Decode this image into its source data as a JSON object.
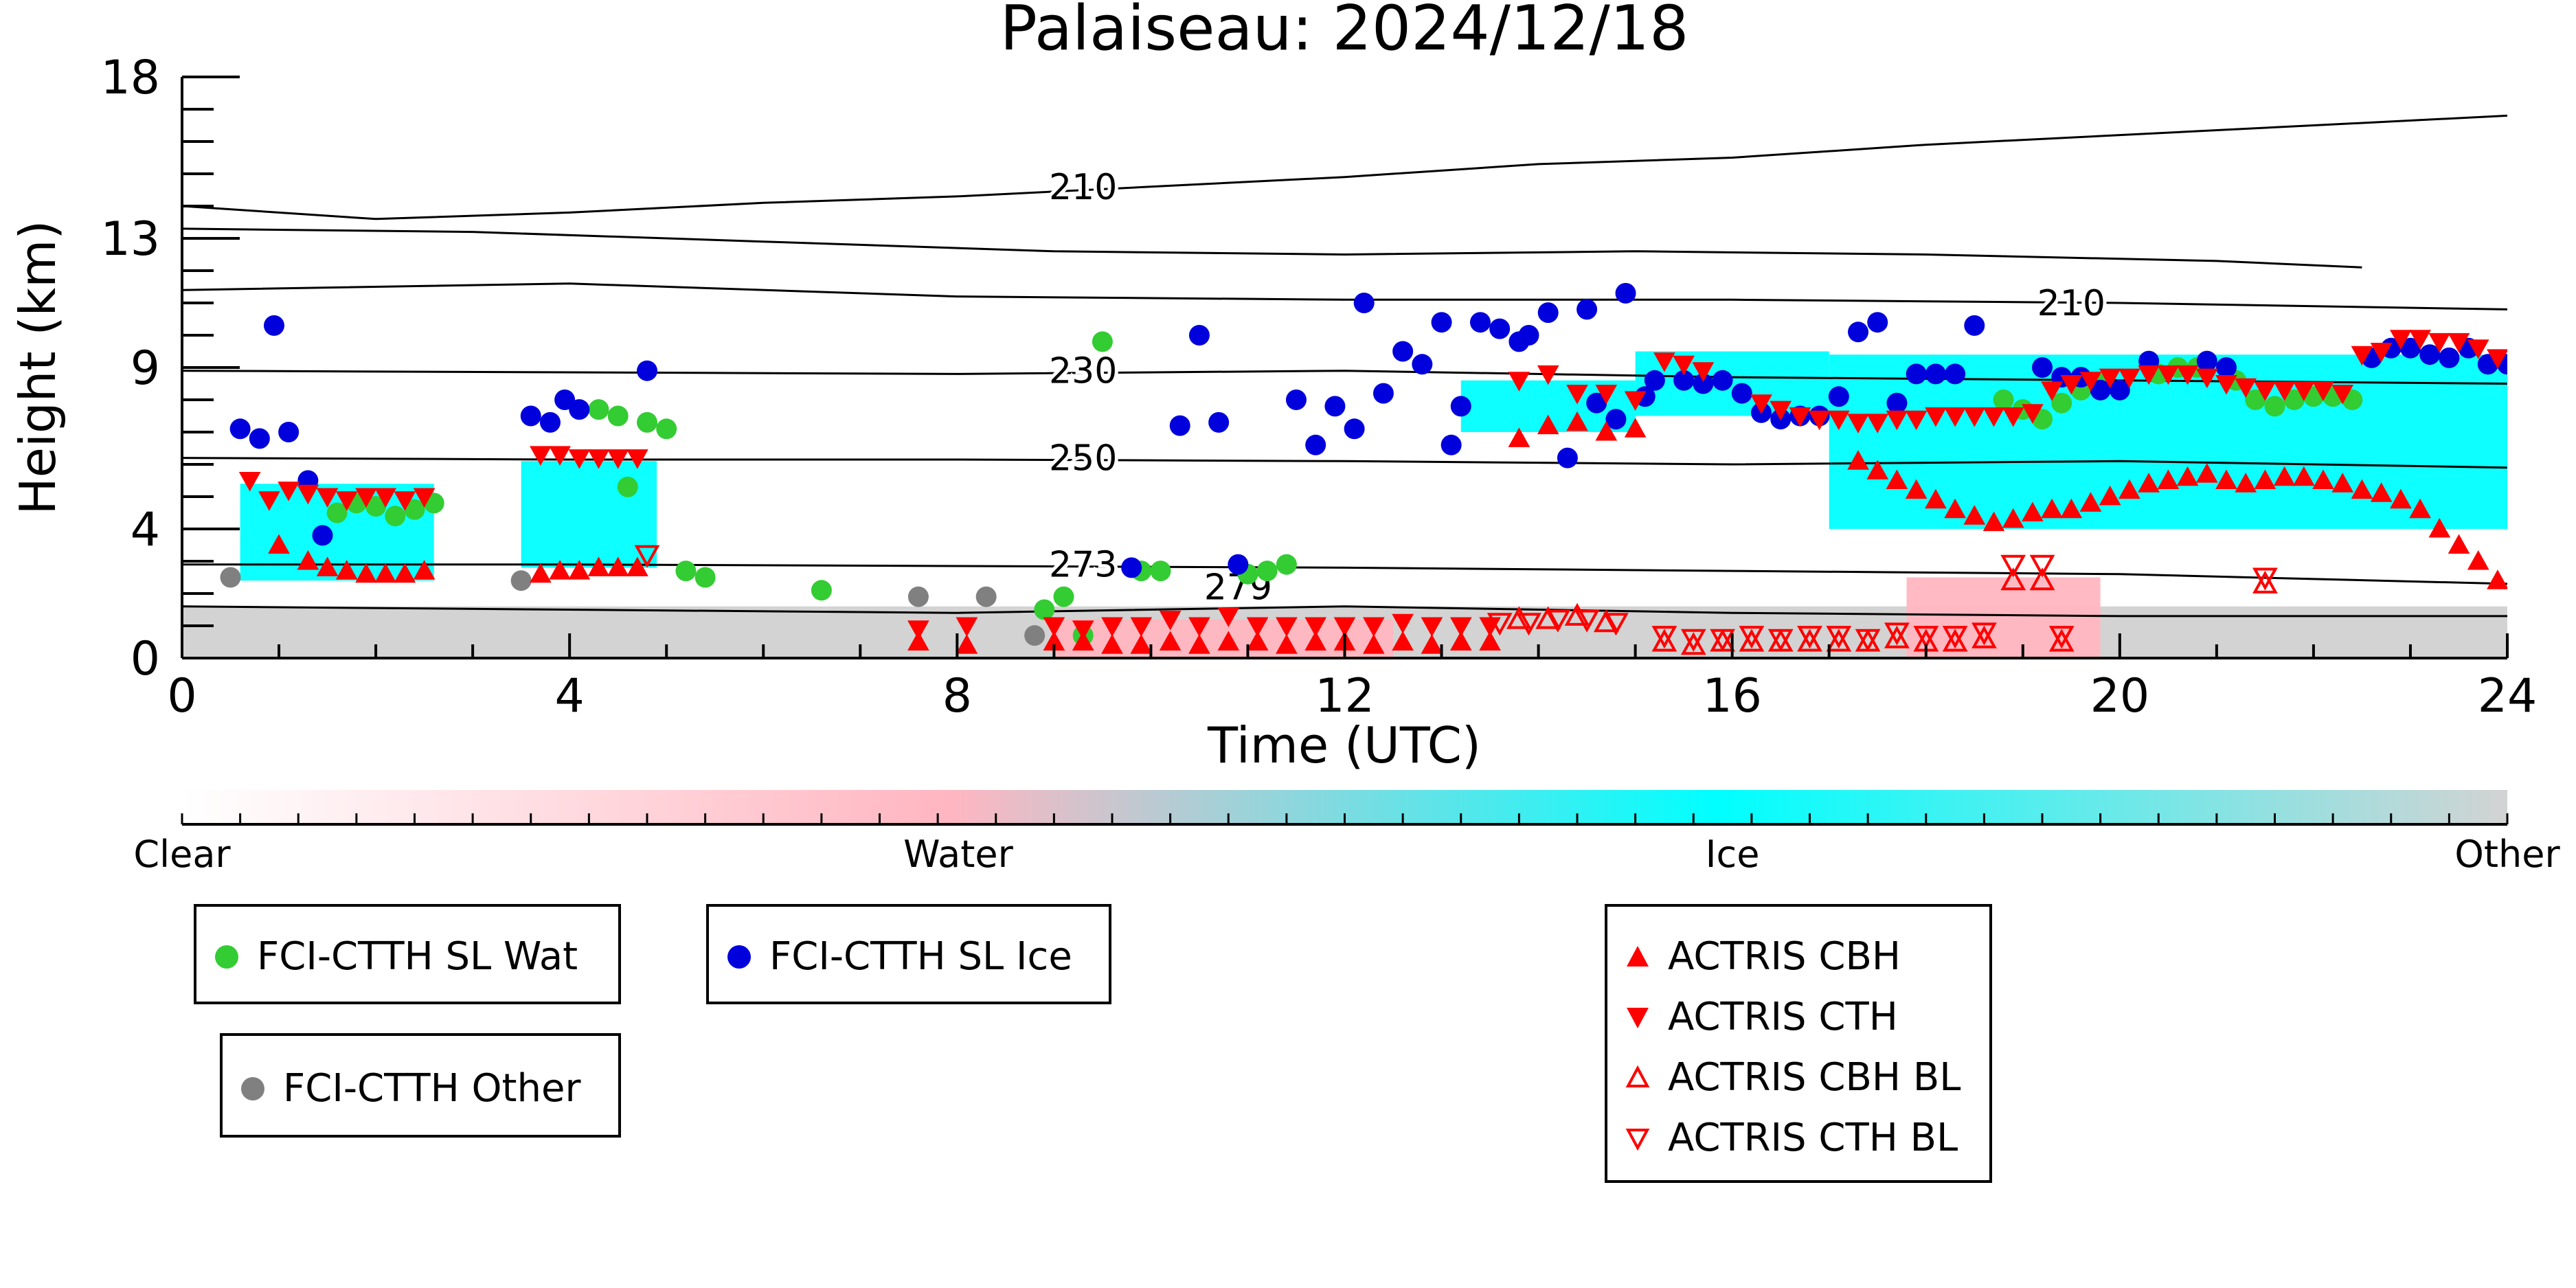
{
  "chart_data": {
    "type": "scatter",
    "title": "Palaiseau: 2024/12/18",
    "xlabel": "Time (UTC)",
    "ylabel": "Height (km)",
    "xlim": [
      0,
      24
    ],
    "ylim": [
      0,
      18
    ],
    "xticks": [
      0,
      4,
      8,
      12,
      16,
      20,
      24
    ],
    "yticks": [
      0,
      4,
      9,
      13,
      18
    ],
    "background_classification": {
      "colorbar_labels": [
        "Clear",
        "Water",
        "Ice",
        "Other"
      ],
      "colors": {
        "clear": "#ffffff",
        "water": "#ffb6c1",
        "ice": "#00ffff",
        "other": "#d3d3d3"
      },
      "regions": [
        {
          "class": "other",
          "x": [
            0,
            24
          ],
          "y": [
            0,
            1.6
          ]
        },
        {
          "class": "ice",
          "x": [
            0.6,
            2.6
          ],
          "y": [
            2.4,
            5.4
          ]
        },
        {
          "class": "ice",
          "x": [
            3.5,
            4.9
          ],
          "y": [
            2.8,
            6.1
          ]
        },
        {
          "class": "ice",
          "x": [
            13.2,
            15.0
          ],
          "y": [
            7.0,
            8.6
          ]
        },
        {
          "class": "ice",
          "x": [
            15.0,
            17.0
          ],
          "y": [
            7.5,
            9.5
          ]
        },
        {
          "class": "ice",
          "x": [
            17.0,
            24.0
          ],
          "y": [
            4.0,
            9.4
          ]
        },
        {
          "class": "water",
          "x": [
            9.0,
            12.5
          ],
          "y": [
            0.0,
            1.2
          ]
        },
        {
          "class": "water",
          "x": [
            17.8,
            19.8
          ],
          "y": [
            0.0,
            2.5
          ]
        }
      ]
    },
    "temperature_contours": [
      {
        "label": "210",
        "points": [
          [
            0,
            14.0
          ],
          [
            2,
            13.6
          ],
          [
            4,
            13.8
          ],
          [
            6,
            14.1
          ],
          [
            8,
            14.3
          ],
          [
            10,
            14.6
          ],
          [
            12,
            14.9
          ],
          [
            14,
            15.3
          ],
          [
            16,
            15.5
          ],
          [
            18,
            15.9
          ],
          [
            20,
            16.2
          ],
          [
            22,
            16.5
          ],
          [
            24,
            16.8
          ]
        ]
      },
      {
        "label": "",
        "points": [
          [
            0,
            13.3
          ],
          [
            3,
            13.2
          ],
          [
            6,
            12.9
          ],
          [
            9,
            12.6
          ],
          [
            12,
            12.5
          ],
          [
            15,
            12.6
          ],
          [
            18,
            12.5
          ],
          [
            21,
            12.3
          ],
          [
            22.5,
            12.1
          ]
        ]
      },
      {
        "label": "210",
        "points": [
          [
            0,
            11.4
          ],
          [
            4,
            11.6
          ],
          [
            8,
            11.2
          ],
          [
            12,
            11.1
          ],
          [
            16,
            11.1
          ],
          [
            20,
            11.0
          ],
          [
            24,
            10.8
          ]
        ]
      },
      {
        "label": "230",
        "points": [
          [
            0,
            8.9
          ],
          [
            4,
            8.85
          ],
          [
            8,
            8.8
          ],
          [
            12,
            8.9
          ],
          [
            16,
            8.7
          ],
          [
            20,
            8.6
          ],
          [
            24,
            8.5
          ]
        ]
      },
      {
        "label": "250",
        "points": [
          [
            0,
            6.2
          ],
          [
            4,
            6.15
          ],
          [
            8,
            6.15
          ],
          [
            12,
            6.1
          ],
          [
            16,
            6.0
          ],
          [
            20,
            6.1
          ],
          [
            24,
            5.9
          ]
        ]
      },
      {
        "label": "273",
        "points": [
          [
            0,
            2.9
          ],
          [
            4,
            2.9
          ],
          [
            8,
            2.85
          ],
          [
            12,
            2.8
          ],
          [
            16,
            2.7
          ],
          [
            20,
            2.6
          ],
          [
            24,
            2.3
          ]
        ]
      },
      {
        "label": "279",
        "points": [
          [
            0,
            1.6
          ],
          [
            4,
            1.5
          ],
          [
            8,
            1.4
          ],
          [
            12,
            1.6
          ],
          [
            16,
            1.4
          ],
          [
            20,
            1.3
          ],
          [
            24,
            1.3
          ]
        ]
      }
    ],
    "contour_label_positions": [
      [
        9.3,
        14.6
      ],
      [
        19.5,
        11.0
      ],
      [
        9.3,
        8.9
      ],
      [
        9.3,
        6.2
      ],
      [
        9.3,
        2.9
      ],
      [
        10.9,
        2.2
      ]
    ],
    "series": [
      {
        "name": "FCI-CTTH SL Wat",
        "marker": "circle",
        "color": "#33cc33",
        "x": [
          1.6,
          1.8,
          2.0,
          2.2,
          2.4,
          2.6,
          4.3,
          4.5,
          4.6,
          4.8,
          5.0,
          5.2,
          5.4,
          6.6,
          8.9,
          9.1,
          9.3,
          9.5,
          9.9,
          10.1,
          11.0,
          11.2,
          11.4,
          18.8,
          19.0,
          19.2,
          19.4,
          19.6,
          19.8,
          20.4,
          20.6,
          20.8,
          21.2,
          21.4,
          21.6,
          21.8,
          22.0,
          22.2,
          22.4
        ],
        "y": [
          4.5,
          4.8,
          4.7,
          4.4,
          4.6,
          4.8,
          7.7,
          7.5,
          5.3,
          7.3,
          7.1,
          2.7,
          2.5,
          2.1,
          1.5,
          1.9,
          0.7,
          9.8,
          2.7,
          2.7,
          2.6,
          2.7,
          2.9,
          8.0,
          7.7,
          7.4,
          7.9,
          8.3,
          8.5,
          8.8,
          9.0,
          9.0,
          8.6,
          8.0,
          7.8,
          8.0,
          8.1,
          8.1,
          8.0
        ]
      },
      {
        "name": "FCI-CTTH SL Ice",
        "marker": "circle",
        "color": "#0000dd",
        "x": [
          0.6,
          0.8,
          0.95,
          1.1,
          1.3,
          1.45,
          3.6,
          3.8,
          3.95,
          4.1,
          4.8,
          9.8,
          10.3,
          10.5,
          10.7,
          10.9,
          11.5,
          11.7,
          11.9,
          12.1,
          12.2,
          12.4,
          12.6,
          12.8,
          13.0,
          13.1,
          13.2,
          13.4,
          13.6,
          13.8,
          13.9,
          14.1,
          14.3,
          14.5,
          14.6,
          14.8,
          14.9,
          15.1,
          15.2,
          15.5,
          15.7,
          15.9,
          16.1,
          16.3,
          16.5,
          16.7,
          16.9,
          17.1,
          17.3,
          17.5,
          17.7,
          17.9,
          18.1,
          18.3,
          18.5,
          19.2,
          19.4,
          19.6,
          19.8,
          20.0,
          20.3,
          20.9,
          21.1,
          22.6,
          22.8,
          23.0,
          23.2,
          23.4,
          23.6,
          23.8,
          24.0
        ],
        "y": [
          7.1,
          6.8,
          10.3,
          7.0,
          5.5,
          3.8,
          7.5,
          7.3,
          8.0,
          7.7,
          8.9,
          2.8,
          7.2,
          10.0,
          7.3,
          2.9,
          8.0,
          6.6,
          7.8,
          7.1,
          11.0,
          8.2,
          9.5,
          9.1,
          10.4,
          6.6,
          7.8,
          10.4,
          10.2,
          9.8,
          10.0,
          10.7,
          6.2,
          10.8,
          7.9,
          7.4,
          11.3,
          8.1,
          8.6,
          8.6,
          8.5,
          8.6,
          8.2,
          7.6,
          7.4,
          7.5,
          7.5,
          8.1,
          10.1,
          10.4,
          7.9,
          8.8,
          8.8,
          8.8,
          10.3,
          9.0,
          8.7,
          8.7,
          8.3,
          8.3,
          9.2,
          9.2,
          9.0,
          9.3,
          9.6,
          9.6,
          9.4,
          9.3,
          9.6,
          9.1,
          9.1
        ]
      },
      {
        "name": "FCI-CTTH Other",
        "marker": "circle",
        "color": "#808080",
        "x": [
          0.5,
          3.5,
          7.6,
          8.3,
          8.8
        ],
        "y": [
          2.5,
          2.4,
          1.9,
          1.9,
          0.7
        ]
      },
      {
        "name": "ACTRIS CBH",
        "marker": "triangle-up",
        "color": "#ff0000",
        "filled": true,
        "x": [
          1.0,
          1.3,
          1.5,
          1.7,
          1.9,
          2.1,
          2.3,
          2.5,
          3.7,
          3.9,
          4.1,
          4.3,
          4.5,
          4.7,
          7.6,
          8.1,
          9.0,
          9.3,
          9.6,
          9.9,
          10.2,
          10.5,
          10.8,
          11.1,
          11.4,
          11.7,
          12.0,
          12.3,
          12.6,
          12.9,
          13.2,
          13.5,
          13.8,
          14.1,
          14.4,
          14.7,
          15.0,
          17.3,
          17.5,
          17.7,
          17.9,
          18.1,
          18.3,
          18.5,
          18.7,
          18.9,
          19.1,
          19.3,
          19.5,
          19.7,
          19.9,
          20.1,
          20.3,
          20.5,
          20.7,
          20.9,
          21.1,
          21.3,
          21.5,
          21.7,
          21.9,
          22.1,
          22.3,
          22.5,
          22.7,
          22.9,
          23.1,
          23.3,
          23.5,
          23.7,
          23.9
        ],
        "y": [
          3.5,
          3.0,
          2.8,
          2.7,
          2.6,
          2.6,
          2.6,
          2.7,
          2.6,
          2.7,
          2.7,
          2.8,
          2.8,
          2.8,
          0.5,
          0.4,
          0.5,
          0.5,
          0.4,
          0.4,
          0.5,
          0.4,
          0.5,
          0.5,
          0.4,
          0.5,
          0.5,
          0.4,
          0.5,
          0.4,
          0.5,
          0.5,
          6.8,
          7.2,
          7.3,
          7.0,
          7.1,
          6.1,
          5.8,
          5.5,
          5.2,
          4.9,
          4.6,
          4.4,
          4.2,
          4.3,
          4.5,
          4.6,
          4.6,
          4.8,
          5.0,
          5.2,
          5.4,
          5.5,
          5.6,
          5.7,
          5.5,
          5.4,
          5.5,
          5.6,
          5.6,
          5.5,
          5.4,
          5.2,
          5.1,
          4.9,
          4.6,
          4.0,
          3.5,
          3.0,
          2.4
        ]
      },
      {
        "name": "ACTRIS CTH",
        "marker": "triangle-down",
        "color": "#ff0000",
        "filled": true,
        "x": [
          0.7,
          0.9,
          1.1,
          1.3,
          1.5,
          1.7,
          1.9,
          2.1,
          2.3,
          2.5,
          3.7,
          3.9,
          4.1,
          4.3,
          4.5,
          4.7,
          7.6,
          8.1,
          9.0,
          9.3,
          9.6,
          9.9,
          10.2,
          10.5,
          10.8,
          11.1,
          11.4,
          11.7,
          12.0,
          12.3,
          12.6,
          12.9,
          13.2,
          13.5,
          13.8,
          14.1,
          14.4,
          14.7,
          15.0,
          15.3,
          15.5,
          15.7,
          16.3,
          16.5,
          16.7,
          16.9,
          17.1,
          17.3,
          17.5,
          17.7,
          17.9,
          18.1,
          18.3,
          18.5,
          18.7,
          18.9,
          19.1,
          19.3,
          19.5,
          19.7,
          19.9,
          20.1,
          20.3,
          20.5,
          20.7,
          20.9,
          21.1,
          21.3,
          21.5,
          21.7,
          21.9,
          22.1,
          22.3,
          22.5,
          22.7,
          22.9,
          23.1,
          23.3,
          23.5,
          23.7,
          23.9
        ],
        "y": [
          5.5,
          4.9,
          5.2,
          5.1,
          5.0,
          4.9,
          5.0,
          5.0,
          4.9,
          5.0,
          6.3,
          6.3,
          6.2,
          6.2,
          6.2,
          6.2,
          0.9,
          1.0,
          1.0,
          0.9,
          1.0,
          1.0,
          1.2,
          1.0,
          1.3,
          1.0,
          1.0,
          1.0,
          1.0,
          1.0,
          1.1,
          1.0,
          1.0,
          1.0,
          8.6,
          8.8,
          8.2,
          8.2,
          8.0,
          9.2,
          9.1,
          8.9,
          7.9,
          7.7,
          7.5,
          7.4,
          7.4,
          7.3,
          7.3,
          7.4,
          7.4,
          7.5,
          7.5,
          7.5,
          7.5,
          7.5,
          7.6,
          8.3,
          8.5,
          8.6,
          8.7,
          8.7,
          8.8,
          8.8,
          8.8,
          8.7,
          8.5,
          8.4,
          8.3,
          8.3,
          8.3,
          8.3,
          8.2,
          9.4,
          9.5,
          9.9,
          9.9,
          9.8,
          9.8,
          9.6,
          9.3
        ]
      },
      {
        "name": "ACTRIS CBH BL",
        "marker": "triangle-up",
        "color": "#ff0000",
        "filled": false,
        "x": [
          13.8,
          14.1,
          14.4,
          14.7,
          15.3,
          15.6,
          15.9,
          16.2,
          16.5,
          16.8,
          17.1,
          17.4,
          17.7,
          18.0,
          18.3,
          18.6,
          18.9,
          19.2,
          19.4,
          21.5
        ],
        "y": [
          1.2,
          1.2,
          1.3,
          1.1,
          0.5,
          0.4,
          0.5,
          0.5,
          0.5,
          0.5,
          0.5,
          0.5,
          0.6,
          0.5,
          0.5,
          0.6,
          2.4,
          2.4,
          0.5,
          2.3
        ]
      },
      {
        "name": "ACTRIS CTH BL",
        "marker": "triangle-down",
        "color": "#ff0000",
        "filled": false,
        "x": [
          4.8,
          13.6,
          13.9,
          14.2,
          14.5,
          14.8,
          15.3,
          15.6,
          15.9,
          16.2,
          16.5,
          16.8,
          17.1,
          17.4,
          17.7,
          18.0,
          18.3,
          18.6,
          18.9,
          19.2,
          19.4,
          21.5
        ],
        "y": [
          3.2,
          1.1,
          1.1,
          1.2,
          1.2,
          1.1,
          0.7,
          0.6,
          0.6,
          0.7,
          0.6,
          0.7,
          0.7,
          0.6,
          0.8,
          0.7,
          0.7,
          0.8,
          2.9,
          2.9,
          0.7,
          2.5
        ]
      }
    ]
  }
}
